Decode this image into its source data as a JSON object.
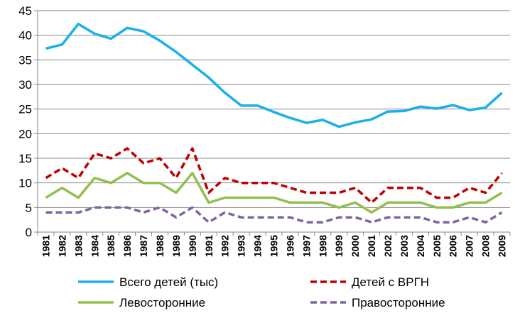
{
  "chart_data": {
    "type": "line",
    "title": "",
    "xlabel": "",
    "ylabel": "",
    "ylim": [
      0,
      45
    ],
    "y_ticks": [
      "0",
      "5",
      "10",
      "15",
      "20",
      "25",
      "30",
      "35",
      "40",
      "45"
    ],
    "grid": "horizontal",
    "legend_position": "bottom",
    "categories": [
      "1981",
      "1982",
      "1983",
      "1984",
      "1985",
      "1986",
      "1987",
      "1988",
      "1989",
      "1990",
      "1991",
      "1992",
      "1993",
      "1994",
      "1995",
      "1996",
      "1997",
      "1998",
      "1999",
      "2000",
      "2001",
      "2002",
      "2003",
      "2004",
      "2005",
      "2006",
      "2007",
      "2008",
      "2009"
    ],
    "series": [
      {
        "name": "Всего детей (тыс)",
        "color": "#1AB0E8",
        "dash": "solid",
        "values": [
          37.3,
          38.1,
          42.3,
          40.3,
          39.3,
          41.5,
          40.8,
          38.9,
          36.6,
          34.0,
          31.4,
          28.3,
          25.7,
          25.7,
          24.4,
          23.2,
          22.2,
          22.8,
          21.4,
          22.3,
          22.9,
          24.5,
          24.6,
          25.5,
          25.1,
          25.8,
          24.8,
          25.3,
          28.3
        ]
      },
      {
        "name": "Детей с ВРГН",
        "color": "#C00000",
        "dash": "dashed",
        "values": [
          11,
          13,
          11,
          16,
          15,
          17,
          14,
          15,
          11,
          17,
          8,
          11,
          10,
          10,
          10,
          9,
          8,
          8,
          8,
          9,
          6,
          9,
          9,
          9,
          7,
          7,
          9,
          8,
          12
        ]
      },
      {
        "name": "Левосторонние",
        "color": "#92C050",
        "dash": "solid",
        "values": [
          7,
          9,
          7,
          11,
          10,
          12,
          10,
          10,
          8,
          12,
          6,
          7,
          7,
          7,
          7,
          6,
          6,
          6,
          5,
          6,
          4,
          6,
          6,
          6,
          5,
          5,
          6,
          6,
          8
        ]
      },
      {
        "name": "Правосторонние",
        "color": "#8064A2",
        "dash": "dashed",
        "values": [
          4,
          4,
          4,
          5,
          5,
          5,
          4,
          5,
          3,
          5,
          2,
          4,
          3,
          3,
          3,
          3,
          2,
          2,
          3,
          3,
          2,
          3,
          3,
          3,
          2,
          2,
          3,
          2,
          4
        ]
      }
    ]
  }
}
